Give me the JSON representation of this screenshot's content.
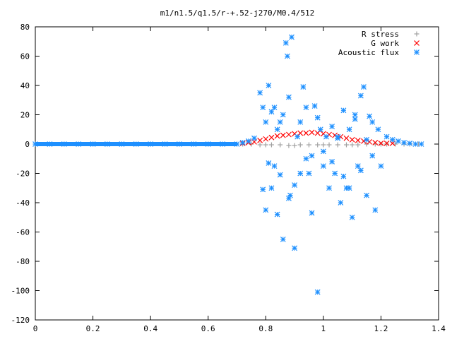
{
  "chart_data": {
    "type": "scatter",
    "title": "m1/n1.5/q1.5/r-+.52-j270/M0.4/512",
    "xlabel": "",
    "ylabel": "",
    "xlim": [
      0,
      1.4
    ],
    "ylim": [
      -120,
      80
    ],
    "x_ticks": [
      "0",
      "0.2",
      "0.4",
      "0.6",
      "0.8",
      "1",
      "1.2",
      "1.4"
    ],
    "y_ticks": [
      "80",
      "60",
      "40",
      "20",
      "0",
      "-20",
      "-40",
      "-60",
      "-80",
      "-100",
      "-120"
    ],
    "grid": false,
    "legend_position": "top-right",
    "series": [
      {
        "name": "R stress",
        "marker": "plus",
        "color": "#a0a0a0",
        "x": [
          0.0,
          0.1,
          0.2,
          0.3,
          0.4,
          0.5,
          0.6,
          0.7,
          0.72,
          0.75,
          0.78,
          0.8,
          0.82,
          0.85,
          0.88,
          0.9,
          0.92,
          0.95,
          0.98,
          1.0,
          1.02,
          1.05,
          1.08,
          1.1,
          1.12,
          1.15,
          1.18,
          1.2,
          1.22,
          1.25,
          1.28,
          1.3,
          1.33
        ],
        "y": [
          0,
          0,
          0,
          0,
          0,
          0,
          0,
          0,
          0,
          0,
          -0.5,
          -0.5,
          -0.5,
          -0.5,
          -1,
          -1,
          -0.5,
          -0.5,
          -0.5,
          -0.5,
          -0.5,
          -0.5,
          -0.5,
          -0.5,
          -0.5,
          0,
          0,
          0,
          0,
          0,
          0,
          0,
          0
        ]
      },
      {
        "name": "G work",
        "marker": "cross",
        "color": "#ff0000",
        "x": [
          0.72,
          0.74,
          0.76,
          0.78,
          0.8,
          0.82,
          0.84,
          0.86,
          0.88,
          0.9,
          0.92,
          0.94,
          0.96,
          0.98,
          1.0,
          1.02,
          1.04,
          1.06,
          1.08,
          1.1,
          1.12,
          1.14,
          1.16,
          1.18,
          1.2,
          1.22,
          1.24
        ],
        "y": [
          0.5,
          1,
          1.5,
          2.5,
          3.5,
          4.5,
          5.5,
          6,
          6.5,
          7,
          7.5,
          7.5,
          8,
          7.5,
          7,
          6.5,
          6,
          5,
          4,
          3,
          2.5,
          2,
          1.5,
          1,
          0.5,
          0.5,
          0.5
        ]
      },
      {
        "name": "Acoustic flux",
        "marker": "star",
        "color": "#1e90ff",
        "x": [
          0.0,
          0.05,
          0.1,
          0.15,
          0.2,
          0.25,
          0.3,
          0.35,
          0.4,
          0.45,
          0.5,
          0.55,
          0.6,
          0.65,
          0.7,
          0.72,
          0.74,
          0.76,
          0.78,
          0.79,
          0.8,
          0.81,
          0.82,
          0.83,
          0.84,
          0.85,
          0.86,
          0.87,
          0.875,
          0.88,
          0.885,
          0.89,
          0.9,
          0.91,
          0.92,
          0.93,
          0.94,
          0.95,
          0.96,
          0.97,
          0.98,
          0.99,
          1.0,
          1.01,
          1.02,
          1.03,
          1.04,
          1.05,
          1.06,
          1.07,
          1.08,
          1.09,
          1.1,
          1.11,
          1.12,
          1.13,
          1.14,
          1.15,
          1.16,
          1.17,
          1.18,
          1.19,
          1.2,
          1.22,
          1.24,
          1.26,
          1.28,
          1.3,
          1.32,
          1.34,
          0.79,
          0.8,
          0.81,
          0.82,
          0.83,
          0.84,
          0.85,
          0.86,
          0.88,
          0.9,
          0.92,
          0.94,
          0.96,
          0.98,
          1.0,
          1.03,
          1.05,
          1.07,
          1.09,
          1.11,
          1.13,
          1.15,
          1.17
        ],
        "y": [
          0,
          0,
          0,
          0,
          0,
          0,
          0,
          0,
          0,
          0,
          0,
          0,
          0,
          0,
          0,
          1,
          2,
          4,
          35,
          25,
          -45,
          40,
          -30,
          25,
          -48,
          15,
          -65,
          69,
          60,
          32,
          -35,
          73,
          -71,
          5,
          -20,
          39,
          25,
          -20,
          -47,
          26,
          -101,
          10,
          -15,
          5,
          -30,
          12,
          -20,
          5,
          -40,
          23,
          -30,
          10,
          -50,
          20,
          -15,
          33,
          39,
          -35,
          19,
          15,
          -45,
          10,
          -15,
          5,
          3,
          2,
          1,
          0.5,
          0,
          0,
          -31,
          15,
          -13,
          22,
          -15,
          10,
          -21,
          20,
          -37,
          -28,
          15,
          -10,
          -8,
          18,
          -5,
          -12,
          4,
          -22,
          -30,
          17,
          -18,
          3,
          -8
        ]
      }
    ]
  }
}
